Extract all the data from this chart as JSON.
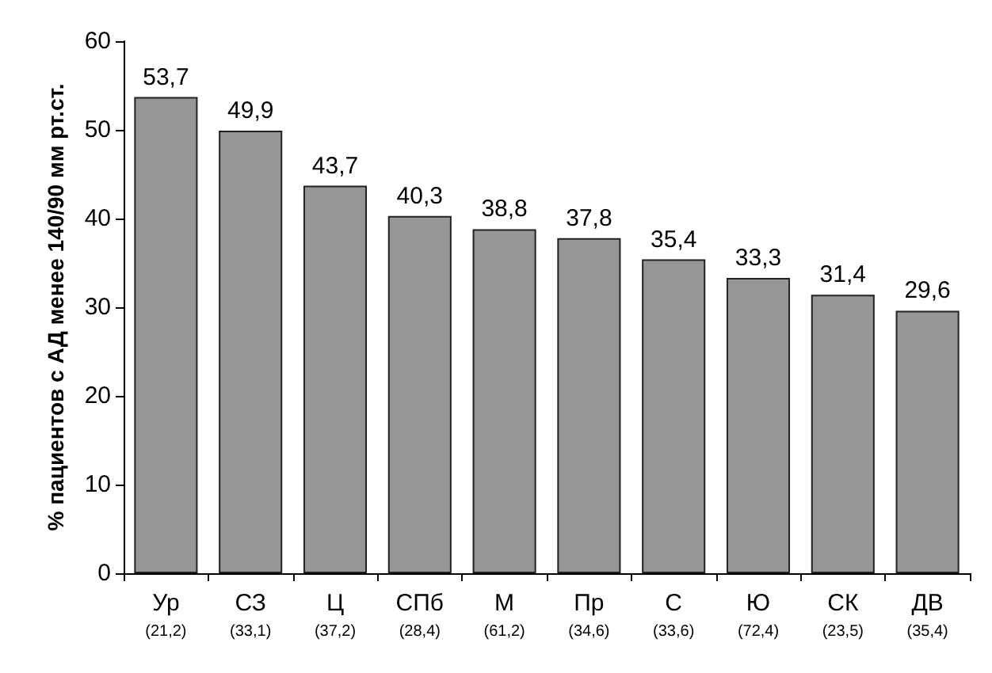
{
  "chart_data": {
    "type": "bar",
    "ylabel": "% пациентов с АД менее 140/90 мм рт.ст.",
    "categories": [
      "Ур\n(21,2)",
      "СЗ\n(33,1)",
      "Ц\n(37,2)",
      "СПб\n(28,4)",
      "М\n(61,2)",
      "Пр\n(34,6)",
      "С\n(33,6)",
      "Ю\n(72,4)",
      "СК\n(23,5)",
      "ДВ\n(35,4)"
    ],
    "values": [
      53.7,
      49.9,
      43.7,
      40.3,
      38.8,
      37.8,
      35.4,
      33.3,
      31.4,
      29.6
    ],
    "value_labels": [
      "53,7",
      "49,9",
      "43,7",
      "40,3",
      "38,8",
      "37,8",
      "35,4",
      "33,3",
      "31,4",
      "29,6"
    ],
    "color": "#969696",
    "ylim": [
      0,
      60
    ],
    "yticks": [
      0,
      10,
      20,
      30,
      40,
      50,
      60
    ],
    "grid": false
  }
}
